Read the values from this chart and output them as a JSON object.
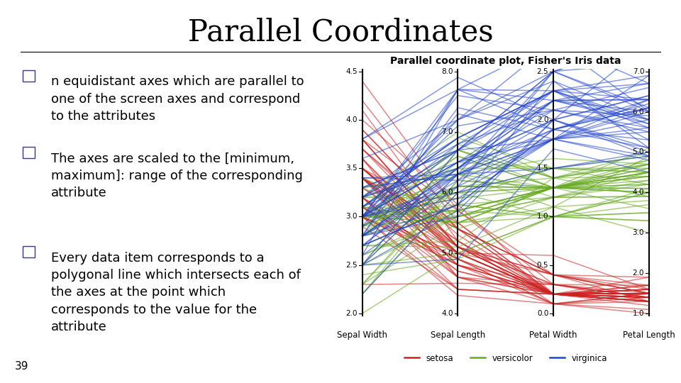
{
  "title": "Parallel Coordinates",
  "slide_number": "39",
  "bullet_lines": [
    [
      "n equidistant axes which are parallel to",
      "one of the screen axes and correspond",
      "to the attributes"
    ],
    [
      "The axes are scaled to the [minimum,",
      "maximum]: range of the corresponding",
      "attribute"
    ],
    [
      "Every data item corresponds to a",
      "polygonal line which intersects each of",
      "the axes at the point which",
      "corresponds to the value for the",
      "attribute"
    ]
  ],
  "plot_title": "Parallel coordinate plot, Fisher's Iris data",
  "axis_labels": [
    "Sepal Width",
    "Sepal Length",
    "Petal Width",
    "Petal Length"
  ],
  "axis_mins": [
    2.0,
    4.0,
    0.0,
    1.0
  ],
  "axis_maxs": [
    4.5,
    8.0,
    2.5,
    7.0
  ],
  "axis_ticks": [
    [
      2.0,
      2.5,
      3.0,
      3.5,
      4.0,
      4.5
    ],
    [
      4.0,
      5.0,
      6.0,
      7.0,
      8.0
    ],
    [
      0.0,
      0.5,
      1.0,
      1.5,
      2.0,
      2.5
    ],
    [
      1.0,
      2.0,
      3.0,
      4.0,
      5.0,
      6.0,
      7.0
    ]
  ],
  "species_colors": {
    "setosa": "#cc2222",
    "versicolor": "#66aa22",
    "virginica": "#2244cc"
  },
  "background_color": "#ffffff",
  "title_fontsize": 30,
  "bullet_fontsize": 13,
  "plot_title_fontsize": 10,
  "line_alpha": 0.55,
  "line_width": 1.1,
  "box_color": "#3333aa"
}
